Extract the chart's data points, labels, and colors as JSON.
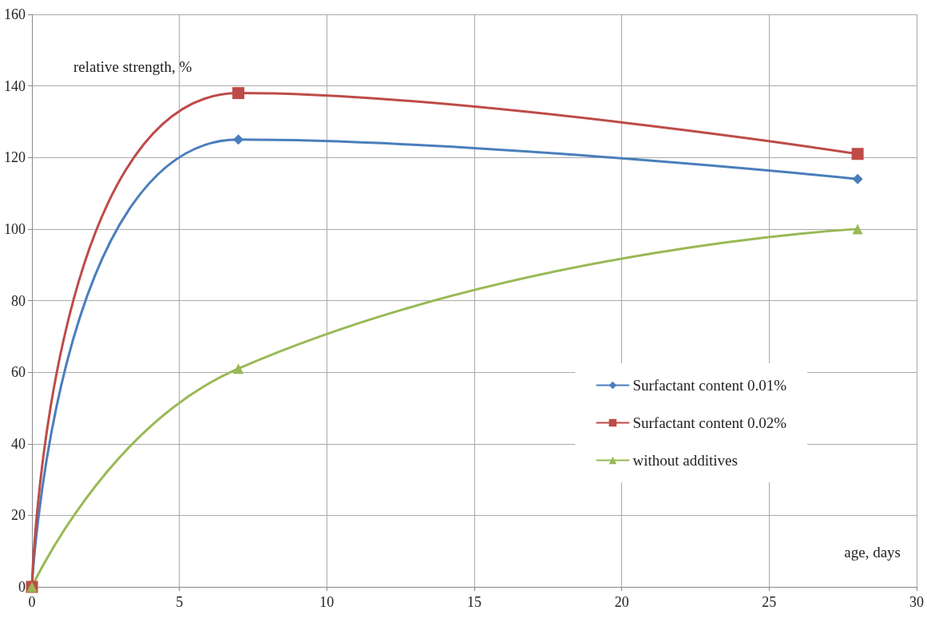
{
  "chart_data": {
    "type": "line",
    "xlabel": "age, days",
    "ylabel": "relative strength, %",
    "x": [
      0,
      7,
      28
    ],
    "series": [
      {
        "name": "Surfactant content 0.01%",
        "color": "#4a7ebb",
        "marker": "diamond",
        "values": [
          0,
          125,
          114
        ]
      },
      {
        "name": "Surfactant content 0.02%",
        "color": "#be4b48",
        "marker": "square",
        "values": [
          0,
          138,
          121
        ]
      },
      {
        "name": "without additives",
        "color": "#98b954",
        "marker": "triangle",
        "values": [
          0,
          61,
          100
        ]
      }
    ],
    "xlim": [
      0,
      30
    ],
    "xticks": [
      0,
      5,
      10,
      15,
      20,
      25,
      30
    ],
    "ylim": [
      0,
      160
    ],
    "yticks": [
      0,
      20,
      40,
      60,
      80,
      100,
      120,
      140,
      160
    ],
    "grid": true,
    "legend": "right"
  }
}
